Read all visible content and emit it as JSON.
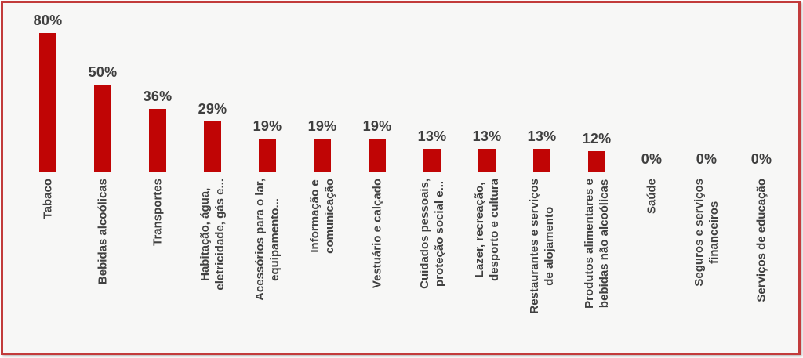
{
  "chart_data": {
    "type": "bar",
    "title": "",
    "xlabel": "",
    "ylabel": "",
    "ylim": [
      0,
      88
    ],
    "grid": false,
    "legend": false,
    "bar_color": "#c00505",
    "value_label_color": "#3f3f3f",
    "category_label_color": "#404040",
    "frame_border_color": "#c23b3b",
    "background_color": "#f7f7f6",
    "categories": [
      "Tabaco",
      "Bebidas alcoólicas",
      "Transportes",
      "Habitação, água,\neletricidade, gás e...",
      "Acessórios para o lar,\nequipamento...",
      "Informação e\ncomunicação",
      "Vestuário e calçado",
      "Cuidados pessoais,\nproteção social e...",
      "Lazer, recreação,\ndesporto e cultura",
      "Restaurantes e serviços\nde alojamento",
      "Produtos alimentares e\nbebidas não alcoólicas",
      "Saúde",
      "Seguros e serviços\nfinanceiros",
      "Serviços de educação"
    ],
    "values": [
      80,
      50,
      36,
      29,
      19,
      19,
      19,
      13,
      13,
      13,
      12,
      0,
      0,
      0
    ],
    "value_labels": [
      "80%",
      "50%",
      "36%",
      "29%",
      "19%",
      "19%",
      "19%",
      "13%",
      "13%",
      "13%",
      "12%",
      "0%",
      "0%",
      "0%"
    ]
  }
}
